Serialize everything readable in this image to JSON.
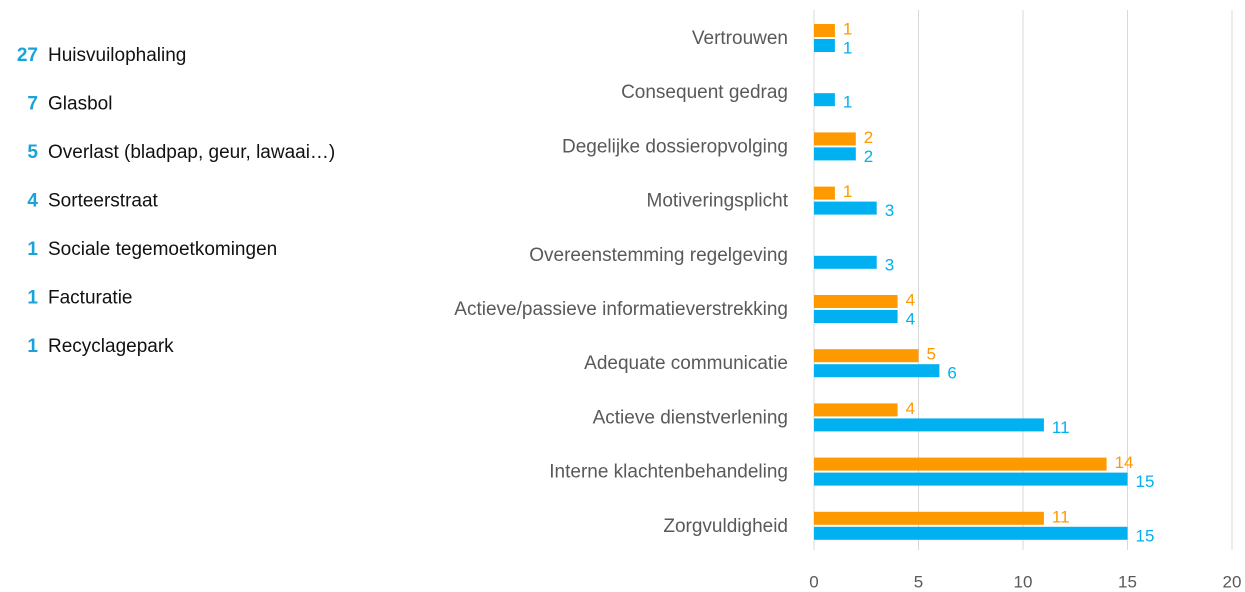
{
  "list": [
    {
      "count": 27,
      "label": "Huisvuilophaling"
    },
    {
      "count": 7,
      "label": "Glasbol"
    },
    {
      "count": 5,
      "label": "Overlast (bladpap, geur, lawaai…)"
    },
    {
      "count": 4,
      "label": "Sorteerstraat"
    },
    {
      "count": 1,
      "label": "Sociale tegemoetkomingen"
    },
    {
      "count": 1,
      "label": "Facturatie"
    },
    {
      "count": 1,
      "label": "Recyclagepark"
    }
  ],
  "chart_data": {
    "type": "hbar",
    "categories": [
      "Vertrouwen",
      "Consequent gedrag",
      "Degelijke dossieropvolging",
      "Motiveringsplicht",
      "Overeenstemming regelgeving",
      "Actieve/passieve informatieverstrekking",
      "Adequate communicatie",
      "Actieve dienstverlening",
      "Interne klachtenbehandeling",
      "Zorgvuldigheid"
    ],
    "series": [
      {
        "color": "#ff9900",
        "values": [
          1,
          null,
          2,
          1,
          null,
          4,
          5,
          4,
          14,
          11
        ]
      },
      {
        "color": "#00b0f0",
        "values": [
          1,
          1,
          2,
          3,
          3,
          4,
          6,
          11,
          15,
          15
        ]
      }
    ],
    "xlim": [
      0,
      20
    ],
    "xticks": [
      0,
      5,
      10,
      15,
      20
    ],
    "grid": true
  }
}
